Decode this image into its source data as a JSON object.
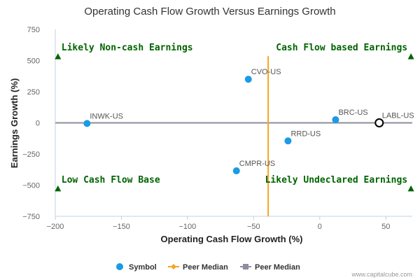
{
  "chart_data": {
    "type": "scatter",
    "title": "Operating Cash Flow Growth Versus Earnings Growth",
    "xlabel": "Operating Cash Flow Growth (%)",
    "ylabel": "Earnings Growth (%)",
    "xlim": [
      -200,
      70
    ],
    "ylim": [
      -750,
      750
    ],
    "x_ticks": [
      -200,
      -150,
      -100,
      -50,
      0,
      50
    ],
    "y_ticks": [
      -750,
      -500,
      -250,
      0,
      250,
      500,
      750
    ],
    "x_tick_labels": [
      "−200",
      "−150",
      "−100",
      "−50",
      "0",
      "50"
    ],
    "y_tick_labels": [
      "−750",
      "−500",
      "−250",
      "0",
      "250",
      "500",
      "750"
    ],
    "points": [
      {
        "label": "INWK-US",
        "x": -176,
        "y": -5
      },
      {
        "label": "CVO-US",
        "x": -54,
        "y": 350
      },
      {
        "label": "RRD-US",
        "x": -24,
        "y": -145
      },
      {
        "label": "CMPR-US",
        "x": -63,
        "y": -385
      },
      {
        "label": "BRC-US",
        "x": 12,
        "y": 25
      },
      {
        "label": "LABL-US",
        "x": 45,
        "y": 0,
        "highlight": true
      }
    ],
    "peer_median_x": -39,
    "peer_median_y": 0,
    "peer_median_x_span": [
      -750,
      535
    ],
    "quadrants": {
      "top_left": {
        "text": "Likely Non-cash Earnings",
        "x": -198,
        "y": 530
      },
      "top_right": {
        "text": "Cash Flow based Earnings",
        "x": 69,
        "y": 530
      },
      "bottom_left": {
        "text": "Low Cash Flow Base",
        "x": -198,
        "y": -530
      },
      "bottom_right": {
        "text": "Likely Undeclared Earnings",
        "x": 69,
        "y": -530
      }
    },
    "legend": [
      {
        "name": "Symbol",
        "color": "#1a9be6",
        "marker": "circle"
      },
      {
        "name": "Peer Median",
        "color": "#f5a623",
        "marker": "diamond"
      },
      {
        "name": "Peer Median",
        "color": "#8e8e9e",
        "marker": "square"
      }
    ],
    "legend_position": "bottom-center",
    "grid": false
  },
  "colors": {
    "point": "#1a9be6",
    "median_x": "#f5a623",
    "median_y": "#8e8e9e",
    "quadrant": "#006400",
    "axis": "#c0d0e0"
  },
  "credit": "www.capitalcube.com"
}
